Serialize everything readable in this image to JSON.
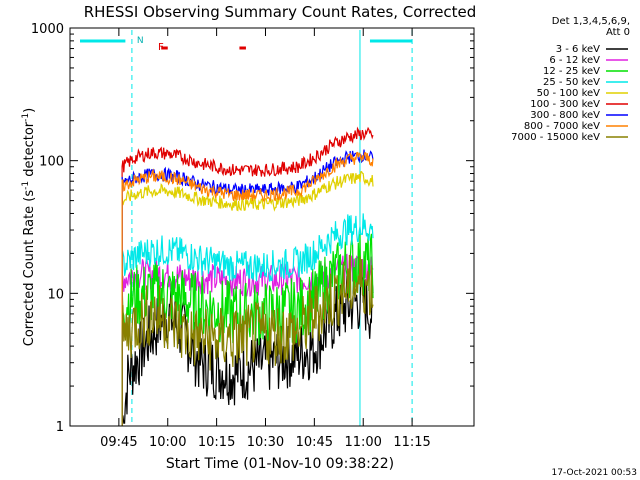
{
  "chart_data": {
    "type": "line",
    "title": "RHESSI Observing Summary Count Rates, Corrected",
    "xlabel": "Start Time (01-Nov-10 09:38:22)",
    "ylabel_main": "Corrected Count Rate (s",
    "ylabel_sup1": "-1",
    "ylabel_mid": " detector",
    "ylabel_sup2": "-1",
    "ylabel_end": ")",
    "yscale": "log",
    "ylim": [
      1,
      1000
    ],
    "xlim_min": [
      -10,
      114
    ],
    "x_ticks": [
      {
        "v": 5,
        "label": "09:45"
      },
      {
        "v": 20,
        "label": "10:00"
      },
      {
        "v": 35,
        "label": "10:15"
      },
      {
        "v": 50,
        "label": "10:30"
      },
      {
        "v": 65,
        "label": "10:45"
      },
      {
        "v": 80,
        "label": "11:00"
      },
      {
        "v": 95,
        "label": "11:15"
      }
    ],
    "y_ticks": [
      {
        "v": 1,
        "label": "1"
      },
      {
        "v": 10,
        "label": "10"
      },
      {
        "v": 100,
        "label": "100"
      },
      {
        "v": 1000,
        "label": "1000"
      }
    ],
    "legend_header": [
      "Det 1,3,4,5,6,9,",
      "Att 0"
    ],
    "legend_position": "right",
    "footer": "17-Oct-2021 00:53",
    "night_markers": [
      {
        "x": [
          -10,
          7
        ],
        "label": ""
      },
      {
        "x": [
          79,
          95
        ],
        "label": ""
      }
    ],
    "saa_label": "N",
    "saa_x": 9,
    "flare_label": "F",
    "flare_marks": [
      [
        18,
        20
      ],
      [
        42,
        44
      ]
    ],
    "obs_start": 6,
    "obs_end": 83,
    "series": [
      {
        "name": "3 - 6 keV",
        "color": "#000000",
        "points": [
          [
            6,
            1
          ],
          [
            8,
            2.5
          ],
          [
            10,
            3
          ],
          [
            15,
            5
          ],
          [
            20,
            7
          ],
          [
            25,
            5
          ],
          [
            30,
            3
          ],
          [
            40,
            2.5
          ],
          [
            50,
            3
          ],
          [
            60,
            3.5
          ],
          [
            65,
            4
          ],
          [
            70,
            6
          ],
          [
            75,
            8
          ],
          [
            80,
            9
          ],
          [
            83,
            7
          ]
        ]
      },
      {
        "name": "6 - 12 keV",
        "color": "#e020e0",
        "points": [
          [
            6,
            13
          ],
          [
            10,
            14
          ],
          [
            15,
            14
          ],
          [
            20,
            14
          ],
          [
            25,
            13
          ],
          [
            30,
            13
          ],
          [
            40,
            12.5
          ],
          [
            50,
            12.5
          ],
          [
            60,
            13
          ],
          [
            65,
            13
          ],
          [
            70,
            14
          ],
          [
            75,
            15
          ],
          [
            80,
            16
          ],
          [
            83,
            15
          ]
        ]
      },
      {
        "name": "12 - 25 keV",
        "color": "#00e000",
        "points": [
          [
            6,
            8.5
          ],
          [
            10,
            9.5
          ],
          [
            15,
            10
          ],
          [
            20,
            10
          ],
          [
            25,
            9
          ],
          [
            30,
            8
          ],
          [
            40,
            7
          ],
          [
            50,
            7
          ],
          [
            60,
            7.5
          ],
          [
            65,
            9
          ],
          [
            70,
            13
          ],
          [
            75,
            16
          ],
          [
            80,
            17
          ],
          [
            83,
            16
          ]
        ]
      },
      {
        "name": "25 - 50 keV",
        "color": "#00e8e8",
        "points": [
          [
            6,
            16
          ],
          [
            10,
            19
          ],
          [
            15,
            21
          ],
          [
            20,
            21
          ],
          [
            25,
            20
          ],
          [
            30,
            18
          ],
          [
            40,
            16
          ],
          [
            50,
            16
          ],
          [
            60,
            17
          ],
          [
            65,
            20
          ],
          [
            70,
            26
          ],
          [
            75,
            30
          ],
          [
            80,
            32
          ],
          [
            83,
            30
          ]
        ]
      },
      {
        "name": "50 - 100 keV",
        "color": "#e0d000",
        "points": [
          [
            6,
            50
          ],
          [
            10,
            56
          ],
          [
            15,
            59
          ],
          [
            20,
            59
          ],
          [
            25,
            56
          ],
          [
            30,
            51
          ],
          [
            40,
            47
          ],
          [
            50,
            47
          ],
          [
            60,
            50
          ],
          [
            65,
            56
          ],
          [
            70,
            66
          ],
          [
            75,
            72
          ],
          [
            80,
            75
          ],
          [
            83,
            70
          ]
        ]
      },
      {
        "name": "100 - 300 keV",
        "color": "#e00000",
        "points": [
          [
            6,
            90
          ],
          [
            10,
            105
          ],
          [
            15,
            115
          ],
          [
            20,
            113
          ],
          [
            25,
            105
          ],
          [
            30,
            95
          ],
          [
            40,
            85
          ],
          [
            50,
            85
          ],
          [
            60,
            90
          ],
          [
            65,
            105
          ],
          [
            70,
            130
          ],
          [
            75,
            150
          ],
          [
            80,
            160
          ],
          [
            83,
            155
          ]
        ]
      },
      {
        "name": "300 - 800 keV",
        "color": "#0000ff",
        "points": [
          [
            6,
            68
          ],
          [
            10,
            74
          ],
          [
            15,
            79
          ],
          [
            20,
            78
          ],
          [
            25,
            73
          ],
          [
            30,
            66
          ],
          [
            40,
            60
          ],
          [
            50,
            60
          ],
          [
            60,
            64
          ],
          [
            65,
            74
          ],
          [
            70,
            92
          ],
          [
            75,
            106
          ],
          [
            80,
            110
          ],
          [
            83,
            104
          ]
        ]
      },
      {
        "name": "800 - 7000 keV",
        "color": "#ff8000",
        "points": [
          [
            6,
            64
          ],
          [
            10,
            71
          ],
          [
            15,
            76
          ],
          [
            20,
            75
          ],
          [
            25,
            70
          ],
          [
            30,
            62
          ],
          [
            40,
            55
          ],
          [
            50,
            55
          ],
          [
            60,
            59
          ],
          [
            65,
            70
          ],
          [
            70,
            88
          ],
          [
            75,
            102
          ],
          [
            80,
            107
          ],
          [
            83,
            100
          ]
        ]
      },
      {
        "name": "7000 - 15000 keV",
        "color": "#888000",
        "points": [
          [
            6,
            4.5
          ],
          [
            10,
            6
          ],
          [
            15,
            7
          ],
          [
            20,
            6.5
          ],
          [
            25,
            5
          ],
          [
            30,
            4.5
          ],
          [
            40,
            4.5
          ],
          [
            50,
            5
          ],
          [
            60,
            5
          ],
          [
            65,
            7
          ],
          [
            70,
            9
          ],
          [
            75,
            11
          ],
          [
            80,
            12
          ],
          [
            83,
            11
          ]
        ]
      }
    ]
  }
}
